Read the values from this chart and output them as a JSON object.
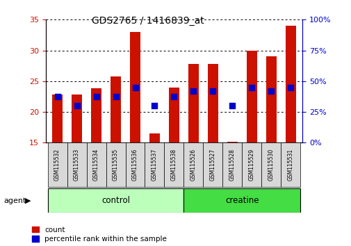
{
  "title": "GDS2765 / 1416839_at",
  "samples": [
    "GSM115532",
    "GSM115533",
    "GSM115534",
    "GSM115535",
    "GSM115536",
    "GSM115537",
    "GSM115538",
    "GSM115526",
    "GSM115527",
    "GSM115528",
    "GSM115529",
    "GSM115530",
    "GSM115531"
  ],
  "groups": [
    "control",
    "control",
    "control",
    "control",
    "control",
    "control",
    "control",
    "creatine",
    "creatine",
    "creatine",
    "creatine",
    "creatine",
    "creatine"
  ],
  "count": [
    22.8,
    22.8,
    23.9,
    25.8,
    33.0,
    16.5,
    24.0,
    27.8,
    27.8,
    15.1,
    30.0,
    29.0,
    34.0
  ],
  "percentile_pct": [
    37.5,
    30.0,
    37.5,
    37.5,
    45.0,
    30.0,
    37.5,
    42.0,
    42.0,
    30.0,
    45.0,
    42.0,
    45.0
  ],
  "ylim_left": [
    15,
    35
  ],
  "ylim_right": [
    0,
    100
  ],
  "yticks_left": [
    15,
    20,
    25,
    30,
    35
  ],
  "yticks_right": [
    0,
    25,
    50,
    75,
    100
  ],
  "bar_color": "#CC1100",
  "dot_color": "#0000CC",
  "group_colors": {
    "control": "#BBFFBB",
    "creatine": "#44DD44"
  },
  "left_axis_color": "#CC1100",
  "right_axis_color": "#0000CC",
  "background_color": "#ffffff",
  "plot_bg_color": "#ffffff",
  "bar_width": 0.55,
  "dot_size": 30,
  "legend_items": [
    "count",
    "percentile rank within the sample"
  ],
  "agent_label": "agent"
}
